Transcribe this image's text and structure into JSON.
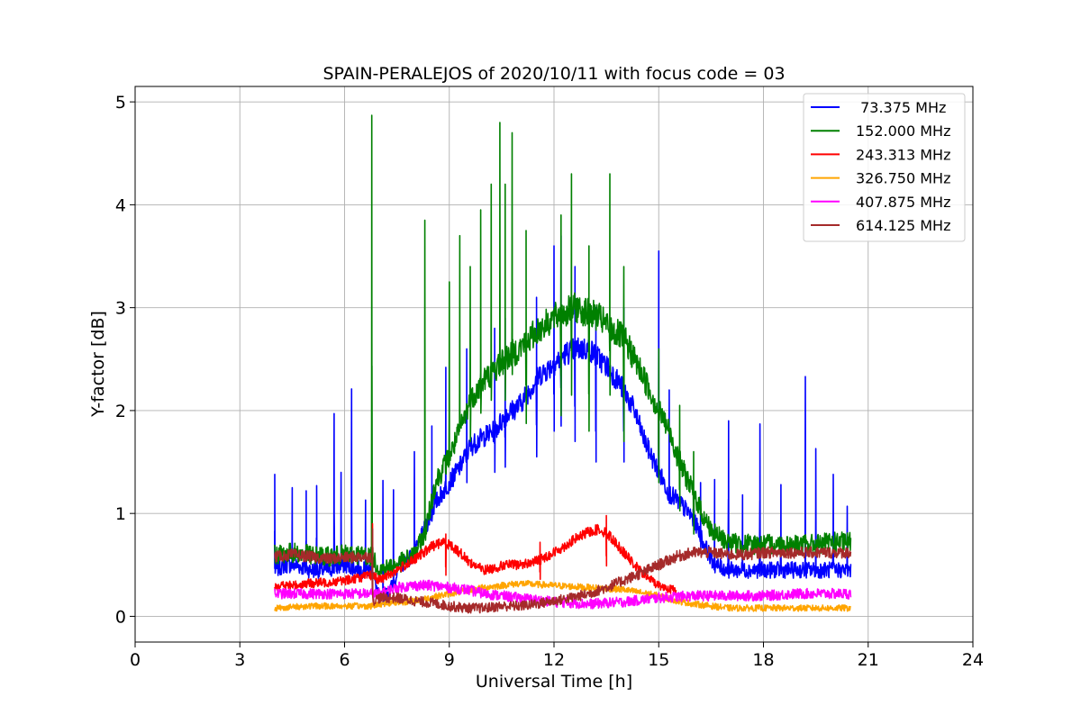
{
  "chart_data": {
    "type": "line",
    "title": "SPAIN-PERALEJOS of 2020/10/11 with focus code = 03",
    "xlabel": "Universal Time [h]",
    "ylabel": "Y-factor [dB]",
    "xlim": [
      0,
      24
    ],
    "ylim": [
      -0.25,
      5.15
    ],
    "xticks": [
      0,
      3,
      6,
      9,
      12,
      15,
      18,
      21,
      24
    ],
    "yticks": [
      0,
      1,
      2,
      3,
      4,
      5
    ],
    "grid": true,
    "legend_position": "top-right",
    "series": [
      {
        "name": " 73.375 MHz",
        "color": "#0000ff",
        "points": [
          [
            4.0,
            0.45
          ],
          [
            4.3,
            0.5
          ],
          [
            4.6,
            0.5
          ],
          [
            5.0,
            0.45
          ],
          [
            5.5,
            0.45
          ],
          [
            6.0,
            0.5
          ],
          [
            6.5,
            0.45
          ],
          [
            6.8,
            0.45
          ],
          [
            7.0,
            0.15
          ],
          [
            7.3,
            0.25
          ],
          [
            7.6,
            0.5
          ],
          [
            8.0,
            0.6
          ],
          [
            8.3,
            0.85
          ],
          [
            8.6,
            1.1
          ],
          [
            9.0,
            1.3
          ],
          [
            9.3,
            1.45
          ],
          [
            9.6,
            1.65
          ],
          [
            10.0,
            1.75
          ],
          [
            10.3,
            1.8
          ],
          [
            10.6,
            1.95
          ],
          [
            11.0,
            2.05
          ],
          [
            11.3,
            2.2
          ],
          [
            11.6,
            2.35
          ],
          [
            12.0,
            2.45
          ],
          [
            12.3,
            2.55
          ],
          [
            12.6,
            2.6
          ],
          [
            13.0,
            2.6
          ],
          [
            13.3,
            2.5
          ],
          [
            13.6,
            2.4
          ],
          [
            14.0,
            2.2
          ],
          [
            14.3,
            2.0
          ],
          [
            14.6,
            1.7
          ],
          [
            15.0,
            1.4
          ],
          [
            15.3,
            1.2
          ],
          [
            15.6,
            1.1
          ],
          [
            16.0,
            0.95
          ],
          [
            16.3,
            0.7
          ],
          [
            16.6,
            0.5
          ],
          [
            17.0,
            0.45
          ],
          [
            17.5,
            0.45
          ],
          [
            18.0,
            0.45
          ],
          [
            18.5,
            0.45
          ],
          [
            19.0,
            0.45
          ],
          [
            19.5,
            0.45
          ],
          [
            20.0,
            0.45
          ],
          [
            20.5,
            0.45
          ]
        ],
        "spikes": [
          [
            4.0,
            1.38
          ],
          [
            4.5,
            1.25
          ],
          [
            4.9,
            1.22
          ],
          [
            5.2,
            1.27
          ],
          [
            5.7,
            1.97
          ],
          [
            5.9,
            1.4
          ],
          [
            6.2,
            2.21
          ],
          [
            6.6,
            1.13
          ],
          [
            7.1,
            1.32
          ],
          [
            7.4,
            1.23
          ],
          [
            8.0,
            1.6
          ],
          [
            8.5,
            1.85
          ],
          [
            8.9,
            2.42
          ],
          [
            9.5,
            2.6
          ],
          [
            10.3,
            2.8
          ],
          [
            10.6,
            2.9
          ],
          [
            11.5,
            3.1
          ],
          [
            12.0,
            3.6
          ],
          [
            12.2,
            3.7
          ],
          [
            12.6,
            3.4
          ],
          [
            13.2,
            3.0
          ],
          [
            14.0,
            3.0
          ],
          [
            15.0,
            3.55
          ],
          [
            15.3,
            2.2
          ],
          [
            16.2,
            1.3
          ],
          [
            16.6,
            1.33
          ],
          [
            17.0,
            1.9
          ],
          [
            17.4,
            1.18
          ],
          [
            17.9,
            1.87
          ],
          [
            18.5,
            1.28
          ],
          [
            19.2,
            2.33
          ],
          [
            19.5,
            1.63
          ],
          [
            20.0,
            1.38
          ],
          [
            20.4,
            1.07
          ]
        ]
      },
      {
        "name": "152.000 MHz",
        "color": "#008000",
        "points": [
          [
            4.0,
            0.6
          ],
          [
            4.5,
            0.62
          ],
          [
            5.0,
            0.6
          ],
          [
            5.5,
            0.58
          ],
          [
            6.0,
            0.6
          ],
          [
            6.5,
            0.6
          ],
          [
            6.8,
            0.58
          ],
          [
            7.0,
            0.45
          ],
          [
            7.5,
            0.5
          ],
          [
            8.0,
            0.6
          ],
          [
            8.3,
            0.8
          ],
          [
            8.6,
            1.3
          ],
          [
            9.0,
            1.55
          ],
          [
            9.3,
            1.8
          ],
          [
            9.6,
            2.1
          ],
          [
            10.0,
            2.3
          ],
          [
            10.3,
            2.4
          ],
          [
            10.6,
            2.5
          ],
          [
            11.0,
            2.6
          ],
          [
            11.3,
            2.7
          ],
          [
            11.6,
            2.8
          ],
          [
            12.0,
            2.9
          ],
          [
            12.3,
            2.95
          ],
          [
            12.6,
            3.0
          ],
          [
            13.0,
            2.95
          ],
          [
            13.3,
            2.9
          ],
          [
            13.6,
            2.8
          ],
          [
            14.0,
            2.7
          ],
          [
            14.3,
            2.5
          ],
          [
            14.6,
            2.3
          ],
          [
            15.0,
            2.0
          ],
          [
            15.3,
            1.8
          ],
          [
            15.6,
            1.5
          ],
          [
            16.0,
            1.2
          ],
          [
            16.3,
            0.95
          ],
          [
            16.6,
            0.8
          ],
          [
            17.0,
            0.72
          ],
          [
            17.5,
            0.7
          ],
          [
            18.0,
            0.7
          ],
          [
            18.5,
            0.7
          ],
          [
            19.0,
            0.7
          ],
          [
            19.5,
            0.7
          ],
          [
            20.0,
            0.72
          ],
          [
            20.5,
            0.72
          ]
        ],
        "spikes": [
          [
            6.78,
            4.87
          ],
          [
            8.3,
            3.85
          ],
          [
            9.0,
            3.25
          ],
          [
            9.3,
            3.7
          ],
          [
            9.6,
            3.4
          ],
          [
            9.9,
            3.95
          ],
          [
            10.2,
            4.2
          ],
          [
            10.45,
            4.8
          ],
          [
            10.6,
            4.2
          ],
          [
            10.8,
            4.7
          ],
          [
            11.2,
            3.75
          ],
          [
            12.2,
            3.9
          ],
          [
            12.5,
            4.3
          ],
          [
            13.0,
            3.6
          ],
          [
            13.6,
            4.3
          ],
          [
            14.0,
            3.4
          ],
          [
            15.0,
            2.6
          ],
          [
            15.6,
            2.05
          ],
          [
            16.0,
            1.6
          ]
        ]
      },
      {
        "name": "243.313 MHz",
        "color": "#ff0000",
        "points": [
          [
            4.0,
            0.3
          ],
          [
            4.5,
            0.3
          ],
          [
            5.0,
            0.32
          ],
          [
            5.5,
            0.33
          ],
          [
            6.0,
            0.35
          ],
          [
            6.5,
            0.38
          ],
          [
            6.8,
            0.4
          ],
          [
            7.0,
            0.35
          ],
          [
            7.5,
            0.45
          ],
          [
            8.0,
            0.55
          ],
          [
            8.5,
            0.68
          ],
          [
            8.8,
            0.72
          ],
          [
            9.0,
            0.7
          ],
          [
            9.3,
            0.62
          ],
          [
            9.6,
            0.52
          ],
          [
            10.0,
            0.45
          ],
          [
            10.3,
            0.47
          ],
          [
            10.6,
            0.5
          ],
          [
            11.0,
            0.5
          ],
          [
            11.3,
            0.52
          ],
          [
            11.6,
            0.55
          ],
          [
            12.0,
            0.62
          ],
          [
            12.3,
            0.68
          ],
          [
            12.6,
            0.75
          ],
          [
            13.0,
            0.82
          ],
          [
            13.3,
            0.85
          ],
          [
            13.6,
            0.78
          ],
          [
            14.0,
            0.62
          ],
          [
            14.3,
            0.5
          ],
          [
            14.6,
            0.4
          ],
          [
            15.0,
            0.3
          ],
          [
            15.5,
            0.25
          ]
        ],
        "spikes": [
          [
            6.8,
            0.9
          ],
          [
            13.5,
            0.98
          ],
          [
            11.6,
            0.72
          ],
          [
            8.9,
            0.8
          ]
        ]
      },
      {
        "name": "326.750 MHz",
        "color": "#ffa500",
        "points": [
          [
            4.0,
            0.08
          ],
          [
            5.0,
            0.1
          ],
          [
            6.0,
            0.1
          ],
          [
            6.8,
            0.1
          ],
          [
            7.0,
            0.12
          ],
          [
            8.0,
            0.15
          ],
          [
            9.0,
            0.22
          ],
          [
            10.0,
            0.28
          ],
          [
            11.0,
            0.32
          ],
          [
            12.0,
            0.3
          ],
          [
            13.0,
            0.28
          ],
          [
            14.0,
            0.26
          ],
          [
            15.0,
            0.2
          ],
          [
            15.5,
            0.15
          ],
          [
            16.0,
            0.12
          ],
          [
            17.0,
            0.08
          ],
          [
            18.0,
            0.08
          ],
          [
            19.0,
            0.08
          ],
          [
            20.0,
            0.08
          ],
          [
            20.5,
            0.08
          ]
        ],
        "spikes": []
      },
      {
        "name": "407.875 MHz",
        "color": "#ff00ff",
        "points": [
          [
            4.0,
            0.22
          ],
          [
            5.0,
            0.22
          ],
          [
            6.0,
            0.22
          ],
          [
            6.8,
            0.22
          ],
          [
            7.0,
            0.22
          ],
          [
            7.5,
            0.28
          ],
          [
            8.0,
            0.3
          ],
          [
            8.5,
            0.3
          ],
          [
            9.0,
            0.28
          ],
          [
            9.5,
            0.26
          ],
          [
            10.0,
            0.22
          ],
          [
            11.0,
            0.18
          ],
          [
            12.0,
            0.14
          ],
          [
            13.0,
            0.12
          ],
          [
            14.0,
            0.14
          ],
          [
            15.0,
            0.18
          ],
          [
            16.0,
            0.2
          ],
          [
            17.0,
            0.2
          ],
          [
            18.0,
            0.2
          ],
          [
            19.0,
            0.22
          ],
          [
            20.0,
            0.22
          ],
          [
            20.5,
            0.22
          ]
        ],
        "spikes": []
      },
      {
        "name": "614.125 MHz",
        "color": "#a52a2a",
        "points": [
          [
            4.0,
            0.58
          ],
          [
            4.5,
            0.6
          ],
          [
            5.0,
            0.58
          ],
          [
            5.5,
            0.56
          ],
          [
            6.0,
            0.57
          ],
          [
            6.5,
            0.58
          ],
          [
            6.78,
            0.58
          ],
          [
            6.8,
            0.15
          ],
          [
            7.0,
            0.18
          ],
          [
            7.5,
            0.18
          ],
          [
            8.0,
            0.15
          ],
          [
            8.5,
            0.13
          ],
          [
            9.0,
            0.1
          ],
          [
            9.5,
            0.08
          ],
          [
            10.0,
            0.08
          ],
          [
            10.5,
            0.1
          ],
          [
            11.0,
            0.1
          ],
          [
            11.5,
            0.12
          ],
          [
            12.0,
            0.15
          ],
          [
            12.5,
            0.18
          ],
          [
            13.0,
            0.22
          ],
          [
            13.5,
            0.28
          ],
          [
            14.0,
            0.35
          ],
          [
            14.5,
            0.42
          ],
          [
            15.0,
            0.5
          ],
          [
            15.5,
            0.58
          ],
          [
            16.0,
            0.62
          ],
          [
            16.5,
            0.62
          ],
          [
            17.0,
            0.6
          ],
          [
            17.5,
            0.6
          ],
          [
            18.0,
            0.62
          ],
          [
            18.5,
            0.62
          ],
          [
            19.0,
            0.62
          ],
          [
            19.5,
            0.62
          ],
          [
            20.0,
            0.62
          ],
          [
            20.5,
            0.62
          ]
        ],
        "spikes": [
          [
            6.8,
            0.85
          ]
        ]
      }
    ]
  }
}
